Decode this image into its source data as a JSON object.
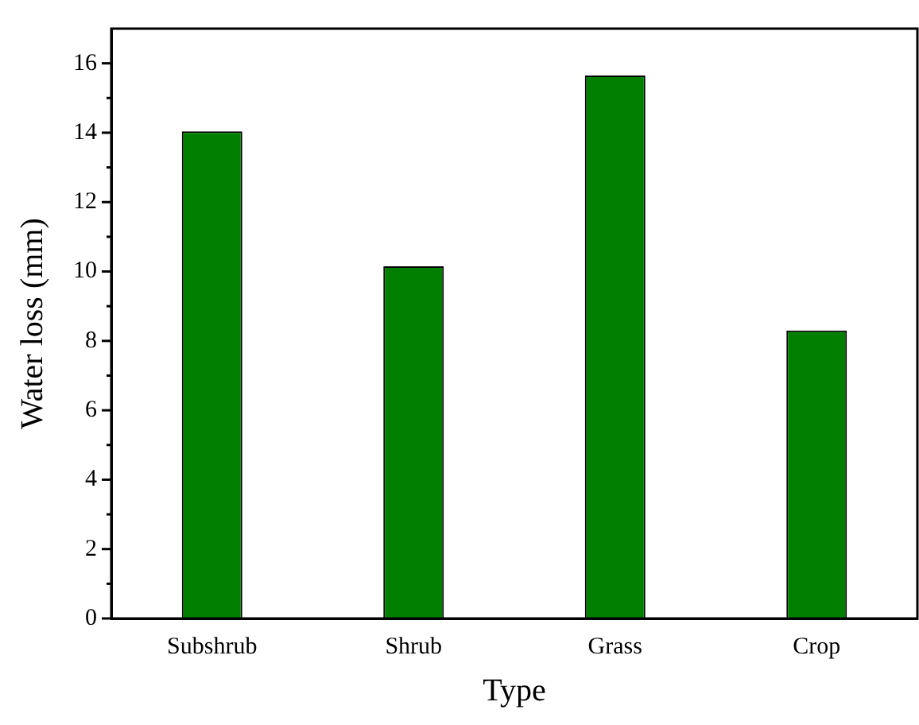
{
  "chart_data": {
    "type": "bar",
    "xlabel": "Type",
    "ylabel": "Water loss (mm)",
    "categories": [
      "Subshrub",
      "Shrub",
      "Grass",
      "Crop"
    ],
    "values": [
      14.04,
      10.15,
      15.65,
      8.3
    ],
    "color": "#007f00",
    "ylim": [
      0,
      17
    ],
    "yticks": [
      0,
      {
        "value": 1,
        "label": null
      },
      2,
      {
        "value": 3,
        "label": null
      },
      4,
      {
        "value": 5,
        "label": null
      },
      6,
      {
        "value": 7,
        "label": null
      },
      8,
      {
        "value": 9,
        "label": null
      },
      10,
      {
        "value": 11,
        "label": null
      },
      12,
      {
        "value": 13,
        "label": null
      },
      14,
      {
        "value": 15,
        "label": null
      },
      16
    ],
    "grid": false,
    "legend": false
  }
}
